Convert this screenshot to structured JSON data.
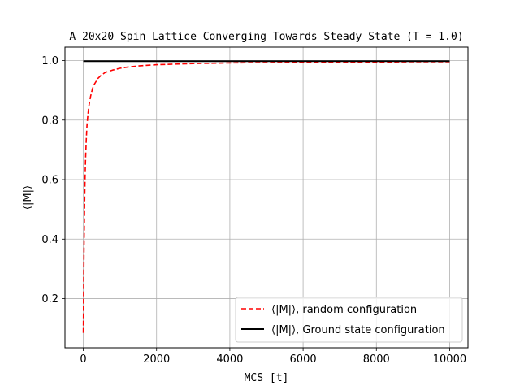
{
  "chart_data": {
    "type": "line",
    "title": "A 20x20 Spin Lattice Converging Towards Steady State (T = 1.0)",
    "xlabel": "MCS [t]",
    "ylabel": "⟨|M|⟩",
    "xlim": [
      -500,
      10500
    ],
    "ylim": [
      0.035,
      1.045
    ],
    "xticks": [
      0,
      2000,
      4000,
      6000,
      8000,
      10000
    ],
    "xtick_labels": [
      "0",
      "2000",
      "4000",
      "6000",
      "8000",
      "10000"
    ],
    "yticks": [
      0.2,
      0.4,
      0.6,
      0.8,
      1.0
    ],
    "ytick_labels": [
      "0.2",
      "0.4",
      "0.6",
      "0.8",
      "1.0"
    ],
    "grid": true,
    "legend_position": "lower-right",
    "series": [
      {
        "name": "⟨|M|⟩, random configuration",
        "color": "#ff0000",
        "style": "dashed",
        "x": [
          1,
          10,
          20,
          30,
          40,
          50,
          60,
          80,
          100,
          120,
          150,
          200,
          250,
          300,
          400,
          500,
          600,
          800,
          1000,
          1200,
          1500,
          2000,
          2500,
          3000,
          4000,
          5000,
          6000,
          7000,
          8000,
          9000,
          10000
        ],
        "y": [
          0.085,
          0.23,
          0.37,
          0.47,
          0.55,
          0.61,
          0.66,
          0.73,
          0.78,
          0.81,
          0.845,
          0.88,
          0.905,
          0.92,
          0.94,
          0.952,
          0.96,
          0.968,
          0.974,
          0.978,
          0.982,
          0.986,
          0.988,
          0.99,
          0.992,
          0.993,
          0.994,
          0.995,
          0.995,
          0.996,
          0.996
        ]
      },
      {
        "name": "⟨|M|⟩, Ground state configuration",
        "color": "#000000",
        "style": "solid",
        "x": [
          0,
          10000
        ],
        "y": [
          0.998,
          0.998
        ]
      }
    ]
  }
}
